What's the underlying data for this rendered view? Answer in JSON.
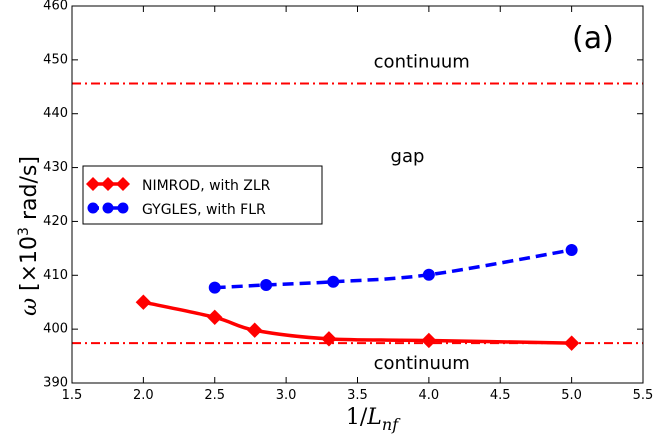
{
  "chart_data": {
    "type": "line",
    "panel_label": "(a)",
    "xlabel_main": "1/",
    "xlabel_var": "L",
    "xlabel_sub": "nf",
    "ylabel_symbol": "ω",
    "ylabel_units": "[×10",
    "ylabel_exp": "3",
    "ylabel_rest": " rad/s]",
    "xlim": [
      1.5,
      5.5
    ],
    "ylim": [
      390,
      460
    ],
    "xticks": [
      "1.5",
      "2.0",
      "2.5",
      "3.0",
      "3.5",
      "4.0",
      "4.5",
      "5.0",
      "5.5"
    ],
    "yticks": [
      "390",
      "400",
      "410",
      "420",
      "430",
      "440",
      "450",
      "460"
    ],
    "reference_lines": [
      {
        "y": 445.6,
        "color": "#ff0000",
        "style": "dash-dot"
      },
      {
        "y": 397.4,
        "color": "#ff0000",
        "style": "dash-dot"
      }
    ],
    "annotations": [
      {
        "text": "continuum",
        "x": 3.95,
        "y": 449.5
      },
      {
        "text": "gap",
        "x": 3.85,
        "y": 432
      },
      {
        "text": "continuum",
        "x": 3.95,
        "y": 393.5
      }
    ],
    "series": [
      {
        "name": "NIMROD, with ZLR",
        "color": "#ff0000",
        "marker": "diamond",
        "linestyle": "solid",
        "x": [
          2.0,
          2.5,
          2.78,
          3.3,
          4.0,
          5.0
        ],
        "y": [
          405.0,
          402.2,
          399.8,
          398.2,
          397.9,
          397.4
        ]
      },
      {
        "name": "GYGLES, with FLR",
        "color": "#0000ff",
        "marker": "circle",
        "linestyle": "dashed",
        "x": [
          2.5,
          2.86,
          3.33,
          4.0,
          5.0
        ],
        "y": [
          407.7,
          408.2,
          408.8,
          410.1,
          414.7
        ]
      }
    ]
  }
}
